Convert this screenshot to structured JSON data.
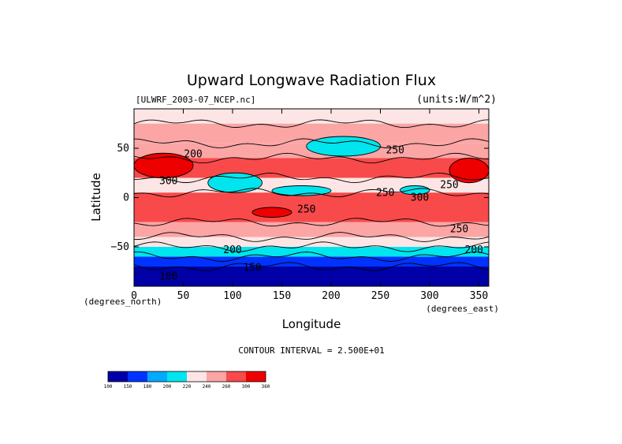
{
  "chart_data": {
    "type": "heatmap",
    "title": "Upward Longwave Radiation Flux",
    "subtitle_left": "[ULWRF_2003-07_NCEP.nc]",
    "subtitle_right": "(units:W/m^2)",
    "xlabel": "Longitude",
    "ylabel": "Latitude",
    "x_unit_label": "(degrees_east)",
    "y_unit_label": "(degrees_north)",
    "xlim": [
      0,
      360
    ],
    "ylim": [
      -90,
      90
    ],
    "x_ticks": [
      0,
      50,
      100,
      150,
      200,
      250,
      300,
      350
    ],
    "y_ticks": [
      -50,
      0,
      50
    ],
    "x_tick_labels": [
      "0",
      "50",
      "100",
      "150",
      "200",
      "250",
      "300",
      "350"
    ],
    "y_tick_labels": [
      "−50",
      "0",
      "50"
    ],
    "contour_interval_text": "CONTOUR INTERVAL = 2.500E+01",
    "contour_labels": [
      {
        "text": "250",
        "lon": 265,
        "lat": 48
      },
      {
        "text": "200",
        "lon": 60,
        "lat": 44
      },
      {
        "text": "300",
        "lon": 35,
        "lat": 17
      },
      {
        "text": "250",
        "lon": 255,
        "lat": 5
      },
      {
        "text": "250",
        "lon": 320,
        "lat": 13
      },
      {
        "text": "250",
        "lon": 175,
        "lat": -12
      },
      {
        "text": "250",
        "lon": 330,
        "lat": -32
      },
      {
        "text": "200",
        "lon": 100,
        "lat": -53
      },
      {
        "text": "200",
        "lon": 345,
        "lat": -53
      },
      {
        "text": "150",
        "lon": 120,
        "lat": -71
      },
      {
        "text": "100",
        "lon": 35,
        "lat": -80
      },
      {
        "text": "300",
        "lon": 290,
        "lat": 0
      }
    ],
    "colorbar": {
      "levels": [
        100,
        150,
        180,
        200,
        220,
        240,
        260,
        300,
        360
      ],
      "tick_labels": [
        "100",
        "150",
        "180",
        "200",
        "220",
        "240",
        "260",
        "300",
        "360"
      ],
      "colors": [
        "#0000a6",
        "#0033ff",
        "#00aaff",
        "#00e5ee",
        "#fde5e5",
        "#fca5a5",
        "#f84a4a",
        "#ee0000"
      ]
    },
    "field_bands": [
      {
        "lat_range": [
          75,
          90
        ],
        "value": 230
      },
      {
        "lat_range": [
          55,
          75
        ],
        "value": 240
      },
      {
        "lat_range": [
          40,
          55
        ],
        "value": 250
      },
      {
        "lat_range": [
          20,
          40
        ],
        "value": 265
      },
      {
        "lat_range": [
          5,
          20
        ],
        "value": 235
      },
      {
        "lat_range": [
          -25,
          5
        ],
        "value": 270
      },
      {
        "lat_range": [
          -40,
          -25
        ],
        "value": 255
      },
      {
        "lat_range": [
          -50,
          -40
        ],
        "value": 225
      },
      {
        "lat_range": [
          -60,
          -50
        ],
        "value": 205
      },
      {
        "lat_range": [
          -70,
          -60
        ],
        "value": 175
      },
      {
        "lat_range": [
          -90,
          -70
        ],
        "value": 120
      }
    ],
    "field_anomalies": [
      {
        "lon": [
          0,
          60
        ],
        "lat": [
          20,
          45
        ],
        "value": 305
      },
      {
        "lon": [
          320,
          360
        ],
        "lat": [
          15,
          40
        ],
        "value": 300
      },
      {
        "lon": [
          120,
          160
        ],
        "lat": [
          -20,
          -10
        ],
        "value": 305
      },
      {
        "lon": [
          75,
          130
        ],
        "lat": [
          5,
          25
        ],
        "value": 215
      },
      {
        "lon": [
          175,
          250
        ],
        "lat": [
          42,
          62
        ],
        "value": 205
      },
      {
        "lon": [
          270,
          300
        ],
        "lat": [
          3,
          12
        ],
        "value": 205
      },
      {
        "lon": [
          140,
          200
        ],
        "lat": [
          2,
          12
        ],
        "value": 215
      }
    ]
  }
}
